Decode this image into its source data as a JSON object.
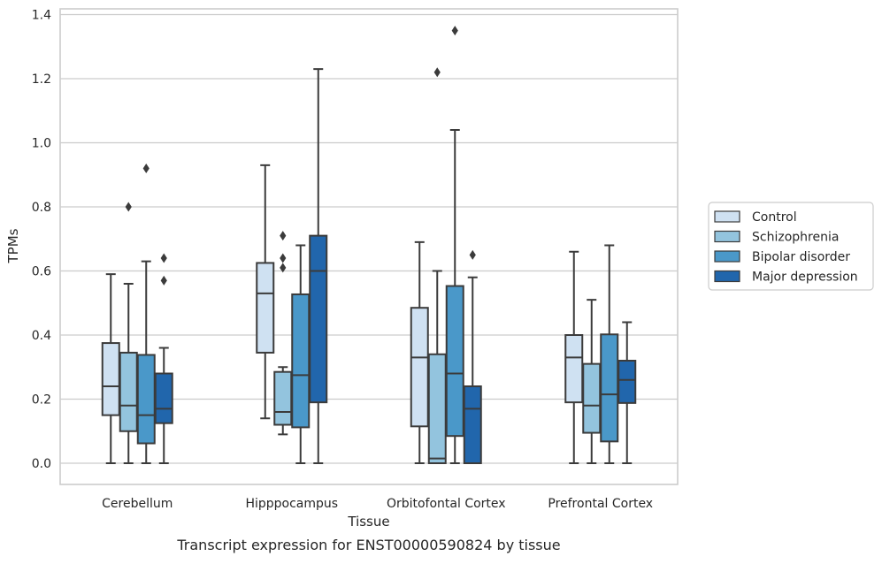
{
  "chart_data": {
    "type": "boxplot",
    "title": "Transcript expression for ENST00000590824 by tissue",
    "xlabel": "Tissue",
    "ylabel": "TPMs",
    "ylim": [
      -0.065,
      1.42
    ],
    "yticks": [
      "0.0",
      "0.2",
      "0.4",
      "0.6",
      "0.8",
      "1.0",
      "1.2",
      "1.4"
    ],
    "grid": true,
    "legend_position": "right",
    "categories": [
      "Cerebellum",
      "Hipppocampus",
      "Orbitofontal Cortex",
      "Prefrontal Cortex"
    ],
    "series": [
      {
        "name": "Control",
        "color": "#cfe1f2",
        "boxes": [
          {
            "whislo": 0.0,
            "q1": 0.15,
            "med": 0.24,
            "q3": 0.375,
            "whishi": 0.59,
            "fliers": []
          },
          {
            "whislo": 0.14,
            "q1": 0.345,
            "med": 0.53,
            "q3": 0.625,
            "whishi": 0.93,
            "fliers": []
          },
          {
            "whislo": 0.0,
            "q1": 0.115,
            "med": 0.33,
            "q3": 0.485,
            "whishi": 0.69,
            "fliers": []
          },
          {
            "whislo": 0.0,
            "q1": 0.19,
            "med": 0.33,
            "q3": 0.4,
            "whishi": 0.66,
            "fliers": []
          }
        ]
      },
      {
        "name": "Schizophrenia",
        "color": "#93c4de",
        "boxes": [
          {
            "whislo": 0.0,
            "q1": 0.1,
            "med": 0.18,
            "q3": 0.345,
            "whishi": 0.56,
            "fliers": [
              0.8
            ]
          },
          {
            "whislo": 0.09,
            "q1": 0.12,
            "med": 0.16,
            "q3": 0.285,
            "whishi": 0.3,
            "fliers": [
              0.61,
              0.64,
              0.71
            ]
          },
          {
            "whislo": 0.0,
            "q1": 0.0,
            "med": 0.015,
            "q3": 0.34,
            "whishi": 0.6,
            "fliers": [
              1.22
            ]
          },
          {
            "whislo": 0.0,
            "q1": 0.095,
            "med": 0.18,
            "q3": 0.31,
            "whishi": 0.51,
            "fliers": []
          }
        ]
      },
      {
        "name": "Bipolar disorder",
        "color": "#4a98c9",
        "boxes": [
          {
            "whislo": 0.0,
            "q1": 0.062,
            "med": 0.15,
            "q3": 0.338,
            "whishi": 0.63,
            "fliers": [
              0.92
            ]
          },
          {
            "whislo": 0.0,
            "q1": 0.112,
            "med": 0.275,
            "q3": 0.527,
            "whishi": 0.68,
            "fliers": []
          },
          {
            "whislo": 0.0,
            "q1": 0.085,
            "med": 0.28,
            "q3": 0.553,
            "whishi": 1.04,
            "fliers": [
              1.35
            ]
          },
          {
            "whislo": 0.0,
            "q1": 0.068,
            "med": 0.215,
            "q3": 0.402,
            "whishi": 0.68,
            "fliers": []
          }
        ]
      },
      {
        "name": "Major depression",
        "color": "#2166ac",
        "boxes": [
          {
            "whislo": 0.0,
            "q1": 0.125,
            "med": 0.17,
            "q3": 0.28,
            "whishi": 0.36,
            "fliers": [
              0.57,
              0.64
            ]
          },
          {
            "whislo": 0.0,
            "q1": 0.19,
            "med": 0.6,
            "q3": 0.71,
            "whishi": 1.23,
            "fliers": []
          },
          {
            "whislo": 0.0,
            "q1": 0.0,
            "med": 0.17,
            "q3": 0.24,
            "whishi": 0.58,
            "fliers": [
              0.65
            ]
          },
          {
            "whislo": 0.0,
            "q1": 0.188,
            "med": 0.26,
            "q3": 0.32,
            "whishi": 0.44,
            "fliers": []
          }
        ]
      }
    ]
  }
}
